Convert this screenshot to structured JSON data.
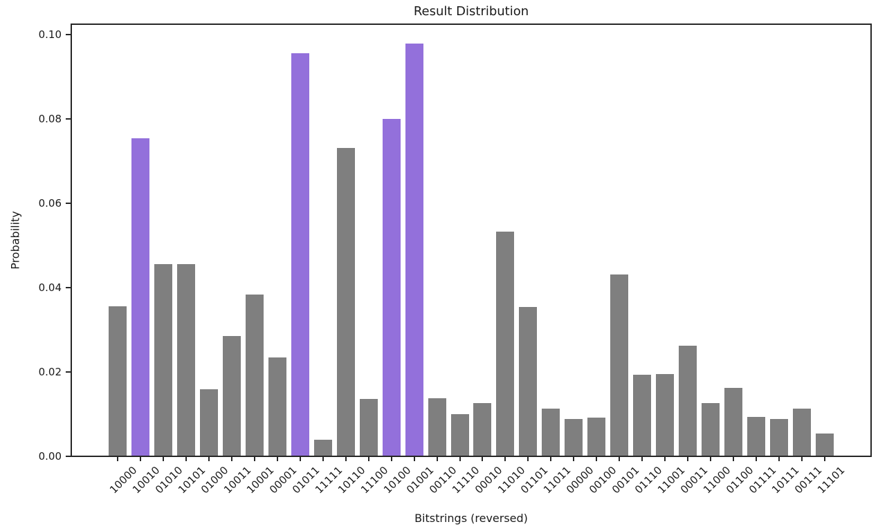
{
  "chart_data": {
    "type": "bar",
    "title": "Result Distribution",
    "xlabel": "Bitstrings (reversed)",
    "ylabel": "Probability",
    "categories": [
      "10000",
      "10010",
      "01010",
      "10101",
      "01000",
      "10011",
      "10001",
      "00001",
      "01011",
      "11111",
      "10110",
      "11100",
      "10100",
      "01001",
      "00110",
      "11110",
      "00010",
      "11010",
      "01101",
      "11011",
      "00000",
      "00100",
      "00101",
      "01110",
      "11001",
      "00011",
      "11000",
      "01100",
      "01111",
      "10111",
      "00111",
      "11101"
    ],
    "values": [
      0.0353,
      0.0752,
      0.0453,
      0.0453,
      0.0157,
      0.0284,
      0.0381,
      0.0232,
      0.0953,
      0.0037,
      0.0729,
      0.0134,
      0.0797,
      0.0976,
      0.0136,
      0.0098,
      0.0125,
      0.053,
      0.0352,
      0.0112,
      0.0086,
      0.009,
      0.0429,
      0.0192,
      0.0193,
      0.026,
      0.0125,
      0.0161,
      0.0091,
      0.0087,
      0.0111,
      0.0052
    ],
    "highlighted_indices": [
      1,
      8,
      12,
      13
    ],
    "highlighted_bitstrings": [
      "10010",
      "01011",
      "10100",
      "01001"
    ],
    "bar_color": "#7f7f7f",
    "highlight_color": "#9370db",
    "axis_color": "#262626",
    "text_color": "#1a1a1a",
    "ylim": [
      0,
      0.1024
    ],
    "ytick_values": [
      0.0,
      0.02,
      0.04,
      0.06,
      0.08,
      0.1
    ],
    "ytick_labels": [
      "0.00",
      "0.02",
      "0.04",
      "0.06",
      "0.08",
      "0.10"
    ],
    "xtick_rotation_deg": 45,
    "grid": false,
    "legend": "none"
  }
}
